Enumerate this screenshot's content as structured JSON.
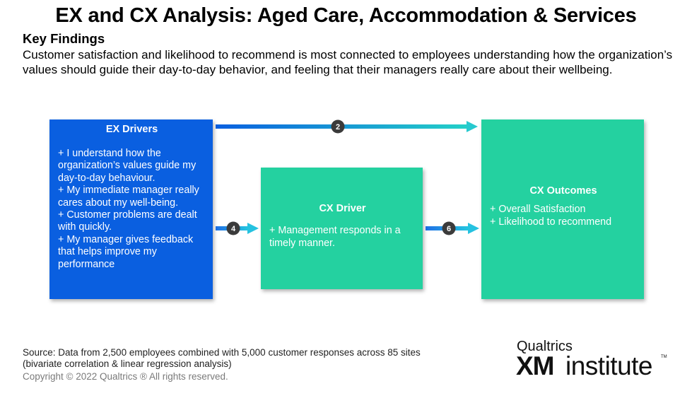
{
  "header": {
    "title": "EX and CX Analysis: Aged Care, Accommodation & Services",
    "subtitle": "Key Findings",
    "description": "Customer satisfaction and likelihood to recommend is most connected to employees understanding how the organization’s values should guide their day-to-day behavior, and feeling that their managers really care about their wellbeing."
  },
  "diagram": {
    "ex_drivers": {
      "title": "EX Drivers",
      "items": [
        "+ I understand how the organization’s values guide my day-to-day behaviour.",
        "+  My immediate manager really cares about my well-being.",
        "+ Customer problems are dealt with quickly.",
        "+ My manager gives feedback that helps improve my performance"
      ],
      "color": "#0a5fe0"
    },
    "cx_driver": {
      "title": "CX Driver",
      "items": [
        "+ Management responds in a timely manner."
      ],
      "color": "#24d1a0"
    },
    "cx_outcomes": {
      "title": "CX Outcomes",
      "items": [
        "+ Overall Satisfaction",
        "+ Likelihood to recommend"
      ],
      "color": "#24d1a0"
    },
    "connectors": [
      {
        "from": "EX Drivers",
        "to": "CX Outcomes",
        "label": "2"
      },
      {
        "from": "EX Drivers",
        "to": "CX Driver",
        "label": "4"
      },
      {
        "from": "CX Driver",
        "to": "CX Outcomes",
        "label": "6"
      }
    ]
  },
  "footer": {
    "source_line1": "Source: Data from 2,500 employees combined with 5,000 customer responses across 85 sites",
    "source_line2": "(bivariate correlation & linear regression analysis)",
    "copyright": "Copyright © 2022 Qualtrics ® All rights reserved.",
    "logo_top": "Qualtrics",
    "logo_xm": "XM",
    "logo_institute": "institute",
    "logo_tm": "TM"
  }
}
